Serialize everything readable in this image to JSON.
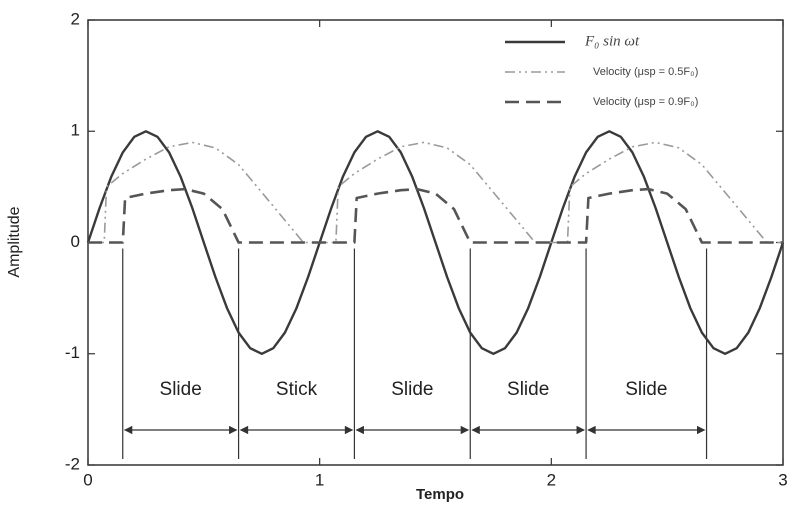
{
  "chart_data": {
    "type": "line",
    "xlabel": "Tempo",
    "ylabel": "Amplitude",
    "xlim": [
      0,
      3
    ],
    "ylim": [
      -2,
      2
    ],
    "xticks": [
      0,
      1,
      2,
      3
    ],
    "yticks": [
      -2,
      -1,
      0,
      1,
      2
    ],
    "grid": false,
    "legend": "upper right",
    "series": [
      {
        "name": "F₀ sin ωt",
        "color": "#3a3a3a",
        "style": "solid",
        "x": [
          0,
          0.05,
          0.1,
          0.15,
          0.2,
          0.25,
          0.3,
          0.35,
          0.4,
          0.45,
          0.5,
          0.55,
          0.6,
          0.65,
          0.7,
          0.75,
          0.8,
          0.85,
          0.9,
          0.95,
          1,
          1.05,
          1.1,
          1.15,
          1.2,
          1.25,
          1.3,
          1.35,
          1.4,
          1.45,
          1.5,
          1.55,
          1.6,
          1.65,
          1.7,
          1.75,
          1.8,
          1.85,
          1.9,
          1.95,
          2,
          2.05,
          2.1,
          2.15,
          2.2,
          2.25,
          2.3,
          2.35,
          2.4,
          2.45,
          2.5,
          2.55,
          2.6,
          2.65,
          2.7,
          2.75,
          2.8,
          2.85,
          2.9,
          2.95,
          3
        ],
        "values": [
          0,
          0.31,
          0.59,
          0.81,
          0.95,
          1,
          0.95,
          0.81,
          0.59,
          0.31,
          0,
          -0.31,
          -0.59,
          -0.81,
          -0.95,
          -1,
          -0.95,
          -0.81,
          -0.59,
          -0.31,
          0,
          0.31,
          0.59,
          0.81,
          0.95,
          1,
          0.95,
          0.81,
          0.59,
          0.31,
          0,
          -0.31,
          -0.59,
          -0.81,
          -0.95,
          -1,
          -0.95,
          -0.81,
          -0.59,
          -0.31,
          0,
          0.31,
          0.59,
          0.81,
          0.95,
          1,
          0.95,
          0.81,
          0.59,
          0.31,
          0,
          -0.31,
          -0.59,
          -0.81,
          -0.95,
          -1,
          -0.95,
          -0.81,
          -0.59,
          -0.31,
          0
        ]
      },
      {
        "name": "Velocity (μsp = 0.5F₀)",
        "color": "#9a9a9a",
        "style": "dashdot",
        "x": [
          0,
          0.07,
          0.08,
          0.15,
          0.25,
          0.35,
          0.45,
          0.55,
          0.65,
          0.75,
          0.85,
          0.93,
          1.07,
          1.08,
          1.15,
          1.25,
          1.35,
          1.45,
          1.55,
          1.65,
          1.75,
          1.85,
          1.93,
          2.07,
          2.08,
          2.15,
          2.25,
          2.35,
          2.45,
          2.55,
          2.65,
          2.75,
          2.85,
          2.93,
          3
        ],
        "values": [
          0,
          0,
          0.5,
          0.62,
          0.75,
          0.86,
          0.9,
          0.85,
          0.7,
          0.45,
          0.2,
          0,
          0,
          0.5,
          0.62,
          0.75,
          0.86,
          0.9,
          0.85,
          0.7,
          0.45,
          0.2,
          0,
          0,
          0.5,
          0.62,
          0.75,
          0.86,
          0.9,
          0.85,
          0.7,
          0.45,
          0.2,
          0,
          0
        ]
      },
      {
        "name": "Velocity (μsp = 0.9F₀)",
        "color": "#555555",
        "style": "dashed",
        "x": [
          0,
          0.15,
          0.16,
          0.25,
          0.35,
          0.42,
          0.5,
          0.58,
          0.65,
          1.15,
          1.16,
          1.25,
          1.35,
          1.42,
          1.5,
          1.58,
          1.65,
          2.15,
          2.16,
          2.25,
          2.35,
          2.42,
          2.5,
          2.58,
          2.65,
          3
        ],
        "values": [
          0,
          0,
          0.4,
          0.44,
          0.47,
          0.48,
          0.44,
          0.3,
          0,
          0,
          0.4,
          0.44,
          0.47,
          0.48,
          0.44,
          0.3,
          0,
          0,
          0.4,
          0.44,
          0.47,
          0.48,
          0.44,
          0.3,
          0,
          0
        ]
      }
    ],
    "boundaries": [
      0.15,
      0.65,
      1.15,
      1.65,
      2.15,
      2.67
    ],
    "region_labels": [
      "Slide",
      "Stick",
      "Slide",
      "Slide",
      "Slide"
    ]
  }
}
